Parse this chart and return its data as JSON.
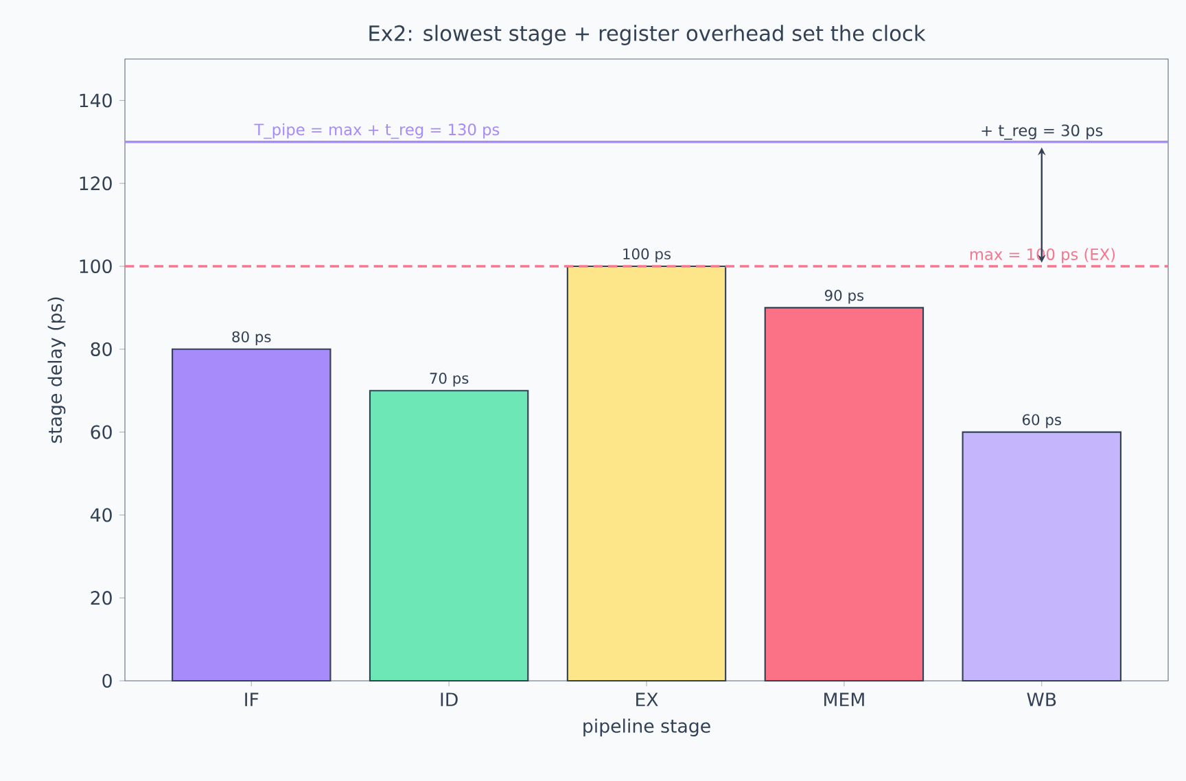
{
  "chart_data": {
    "type": "bar",
    "title": "Ex2: slowest stage + register overhead set the clock",
    "xlabel": "pipeline stage",
    "ylabel": "stage delay (ps)",
    "categories": [
      "IF",
      "ID",
      "EX",
      "MEM",
      "WB"
    ],
    "values": [
      80,
      70,
      100,
      90,
      60
    ],
    "colors": [
      "#a78bfa",
      "#6ee7b7",
      "#fde68a",
      "#fb7185",
      "#c4b5fd"
    ],
    "value_labels": [
      "80 ps",
      "70 ps",
      "100 ps",
      "90 ps",
      "60 ps"
    ],
    "ylim": [
      0,
      150
    ],
    "yticks": [
      0,
      20,
      40,
      60,
      80,
      100,
      120,
      140
    ],
    "ref_lines": [
      {
        "axis": "y",
        "value": 130,
        "label": "T_pipe = max + t_reg = 130 ps",
        "color": "#a78bfa",
        "line_style": "solid"
      },
      {
        "axis": "y",
        "value": 100,
        "label": "max = 100 ps (EX)",
        "color": "#f7768e",
        "line_style": "dashed"
      }
    ],
    "annotations": [
      {
        "text": "+ t_reg = 30 ps",
        "x": "WB",
        "y": 130
      }
    ]
  }
}
